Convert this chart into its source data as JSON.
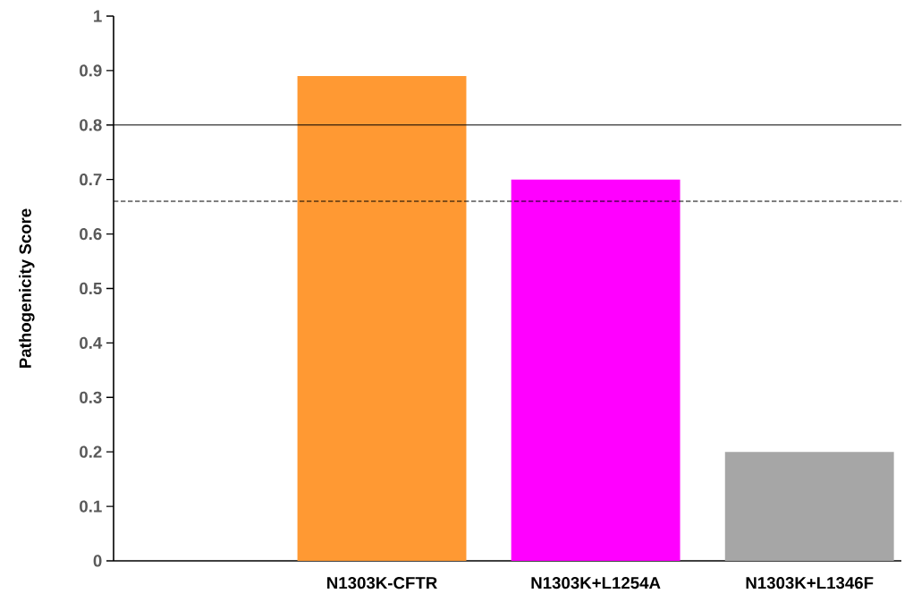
{
  "chart_data": {
    "type": "bar",
    "ylabel": "Pathogenicity Score",
    "categories": [
      null,
      "N1303K-CFTR",
      "N1303K+L1254A",
      "N1303K+L1346F"
    ],
    "values": [
      null,
      0.89,
      0.7,
      0.2
    ],
    "colors": [
      "#a6a6a6",
      "#ff9933",
      "#ff00ff",
      "#a6a6a6"
    ],
    "ylim": [
      0,
      1
    ],
    "yticks": [
      0,
      0.1,
      0.2,
      0.3,
      0.4,
      0.5,
      0.6,
      0.7,
      0.8,
      0.9,
      1
    ],
    "ref_lines": [
      {
        "axis": "y",
        "value": 0.8,
        "color": "#000000",
        "line_style": "solid"
      },
      {
        "axis": "y",
        "value": 0.66,
        "color": "#000000",
        "line_style": "dashed"
      }
    ]
  }
}
